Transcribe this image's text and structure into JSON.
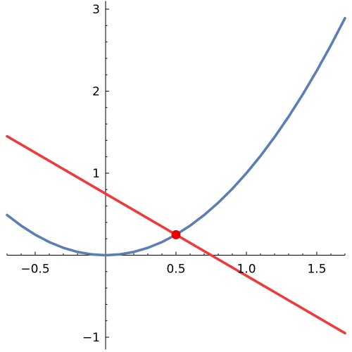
{
  "chart_data": {
    "type": "line",
    "title": "",
    "xlabel": "",
    "ylabel": "",
    "xlim": [
      -0.7,
      1.7
    ],
    "ylim": [
      -1.15,
      3.1
    ],
    "grid": false,
    "x_ticks": [
      -0.5,
      0.5,
      1.0,
      1.5
    ],
    "x_tick_labels": [
      "−0.5",
      "0.5",
      "1.0",
      "1.5"
    ],
    "y_ticks": [
      -1,
      1,
      2,
      3
    ],
    "y_tick_labels": [
      "−1",
      "1",
      "2",
      "3"
    ],
    "series": [
      {
        "kind": "curve",
        "color": "#5b7fb4",
        "x": [
          -0.7,
          -0.6,
          -0.5,
          -0.4,
          -0.3,
          -0.2,
          -0.1,
          0.0,
          0.1,
          0.2,
          0.3,
          0.4,
          0.5,
          0.6,
          0.7,
          0.8,
          0.9,
          1.0,
          1.1,
          1.2,
          1.3,
          1.4,
          1.5,
          1.6,
          1.7
        ],
        "y": [
          0.49,
          0.36,
          0.25,
          0.16,
          0.09,
          0.04,
          0.01,
          0.0,
          0.01,
          0.04,
          0.09,
          0.16,
          0.25,
          0.36,
          0.49,
          0.64,
          0.81,
          1.0,
          1.21,
          1.44,
          1.69,
          1.96,
          2.25,
          2.56,
          2.89
        ]
      },
      {
        "kind": "line",
        "color": "#f03a3a",
        "x": [
          -0.7,
          1.7
        ],
        "y": [
          1.45,
          -0.95
        ]
      }
    ],
    "points": [
      {
        "x": 0.5,
        "y": 0.25,
        "color": "#e60000"
      }
    ]
  }
}
